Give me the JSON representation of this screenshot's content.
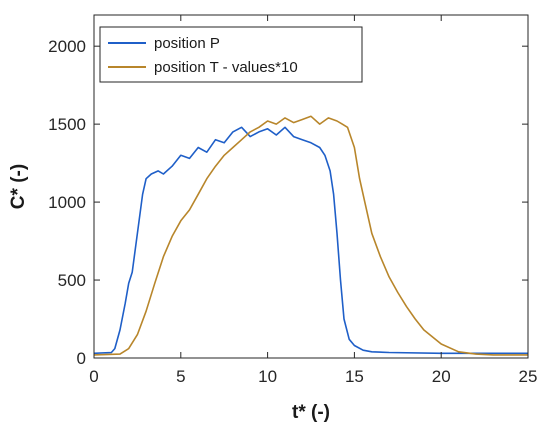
{
  "chart_data": {
    "type": "line",
    "xlabel": "t* (-)",
    "ylabel": "C* (-)",
    "xlim": [
      0,
      25
    ],
    "ylim": [
      0,
      2200
    ],
    "xticks": [
      0,
      5,
      10,
      15,
      20,
      25
    ],
    "yticks": [
      0,
      500,
      1000,
      1500,
      2000
    ],
    "xtick_labels": [
      "0",
      "5",
      "10",
      "15",
      "20",
      "25"
    ],
    "ytick_labels": [
      "0",
      "500",
      "1000",
      "1500",
      "2000"
    ],
    "grid": false,
    "legend_position": "top-left",
    "series": [
      {
        "name": "position P",
        "color": "#1f5fc8",
        "x": [
          0,
          1.0,
          1.2,
          1.5,
          1.8,
          2.0,
          2.2,
          2.5,
          2.8,
          3.0,
          3.3,
          3.7,
          4.0,
          4.5,
          5.0,
          5.5,
          6.0,
          6.5,
          7.0,
          7.5,
          8.0,
          8.5,
          9.0,
          9.5,
          10.0,
          10.5,
          11.0,
          11.5,
          12.0,
          12.5,
          13.0,
          13.3,
          13.6,
          13.8,
          14.0,
          14.2,
          14.4,
          14.7,
          15.0,
          15.5,
          16.0,
          17.0,
          20.0,
          25.0
        ],
        "y": [
          30,
          35,
          60,
          180,
          350,
          480,
          550,
          800,
          1050,
          1150,
          1180,
          1200,
          1180,
          1230,
          1300,
          1280,
          1350,
          1320,
          1400,
          1380,
          1450,
          1480,
          1420,
          1450,
          1470,
          1430,
          1480,
          1420,
          1400,
          1380,
          1350,
          1300,
          1200,
          1050,
          800,
          500,
          250,
          120,
          80,
          50,
          40,
          35,
          30,
          30
        ]
      },
      {
        "name": "position T - values*10",
        "color": "#b8862b",
        "x": [
          0,
          1.5,
          2.0,
          2.5,
          3.0,
          3.5,
          4.0,
          4.5,
          5.0,
          5.5,
          6.0,
          6.5,
          7.0,
          7.5,
          8.0,
          8.5,
          9.0,
          9.5,
          10.0,
          10.5,
          11.0,
          11.5,
          12.0,
          12.5,
          13.0,
          13.5,
          14.0,
          14.3,
          14.6,
          15.0,
          15.3,
          15.6,
          16.0,
          16.5,
          17.0,
          17.5,
          18.0,
          18.5,
          19.0,
          20.0,
          21.0,
          22.0,
          23.0,
          25.0
        ],
        "y": [
          20,
          25,
          60,
          150,
          300,
          480,
          650,
          780,
          880,
          950,
          1050,
          1150,
          1230,
          1300,
          1350,
          1400,
          1450,
          1480,
          1520,
          1500,
          1540,
          1510,
          1530,
          1550,
          1500,
          1540,
          1520,
          1500,
          1480,
          1350,
          1150,
          1000,
          800,
          650,
          520,
          420,
          330,
          250,
          180,
          90,
          40,
          25,
          20,
          20
        ]
      }
    ]
  }
}
